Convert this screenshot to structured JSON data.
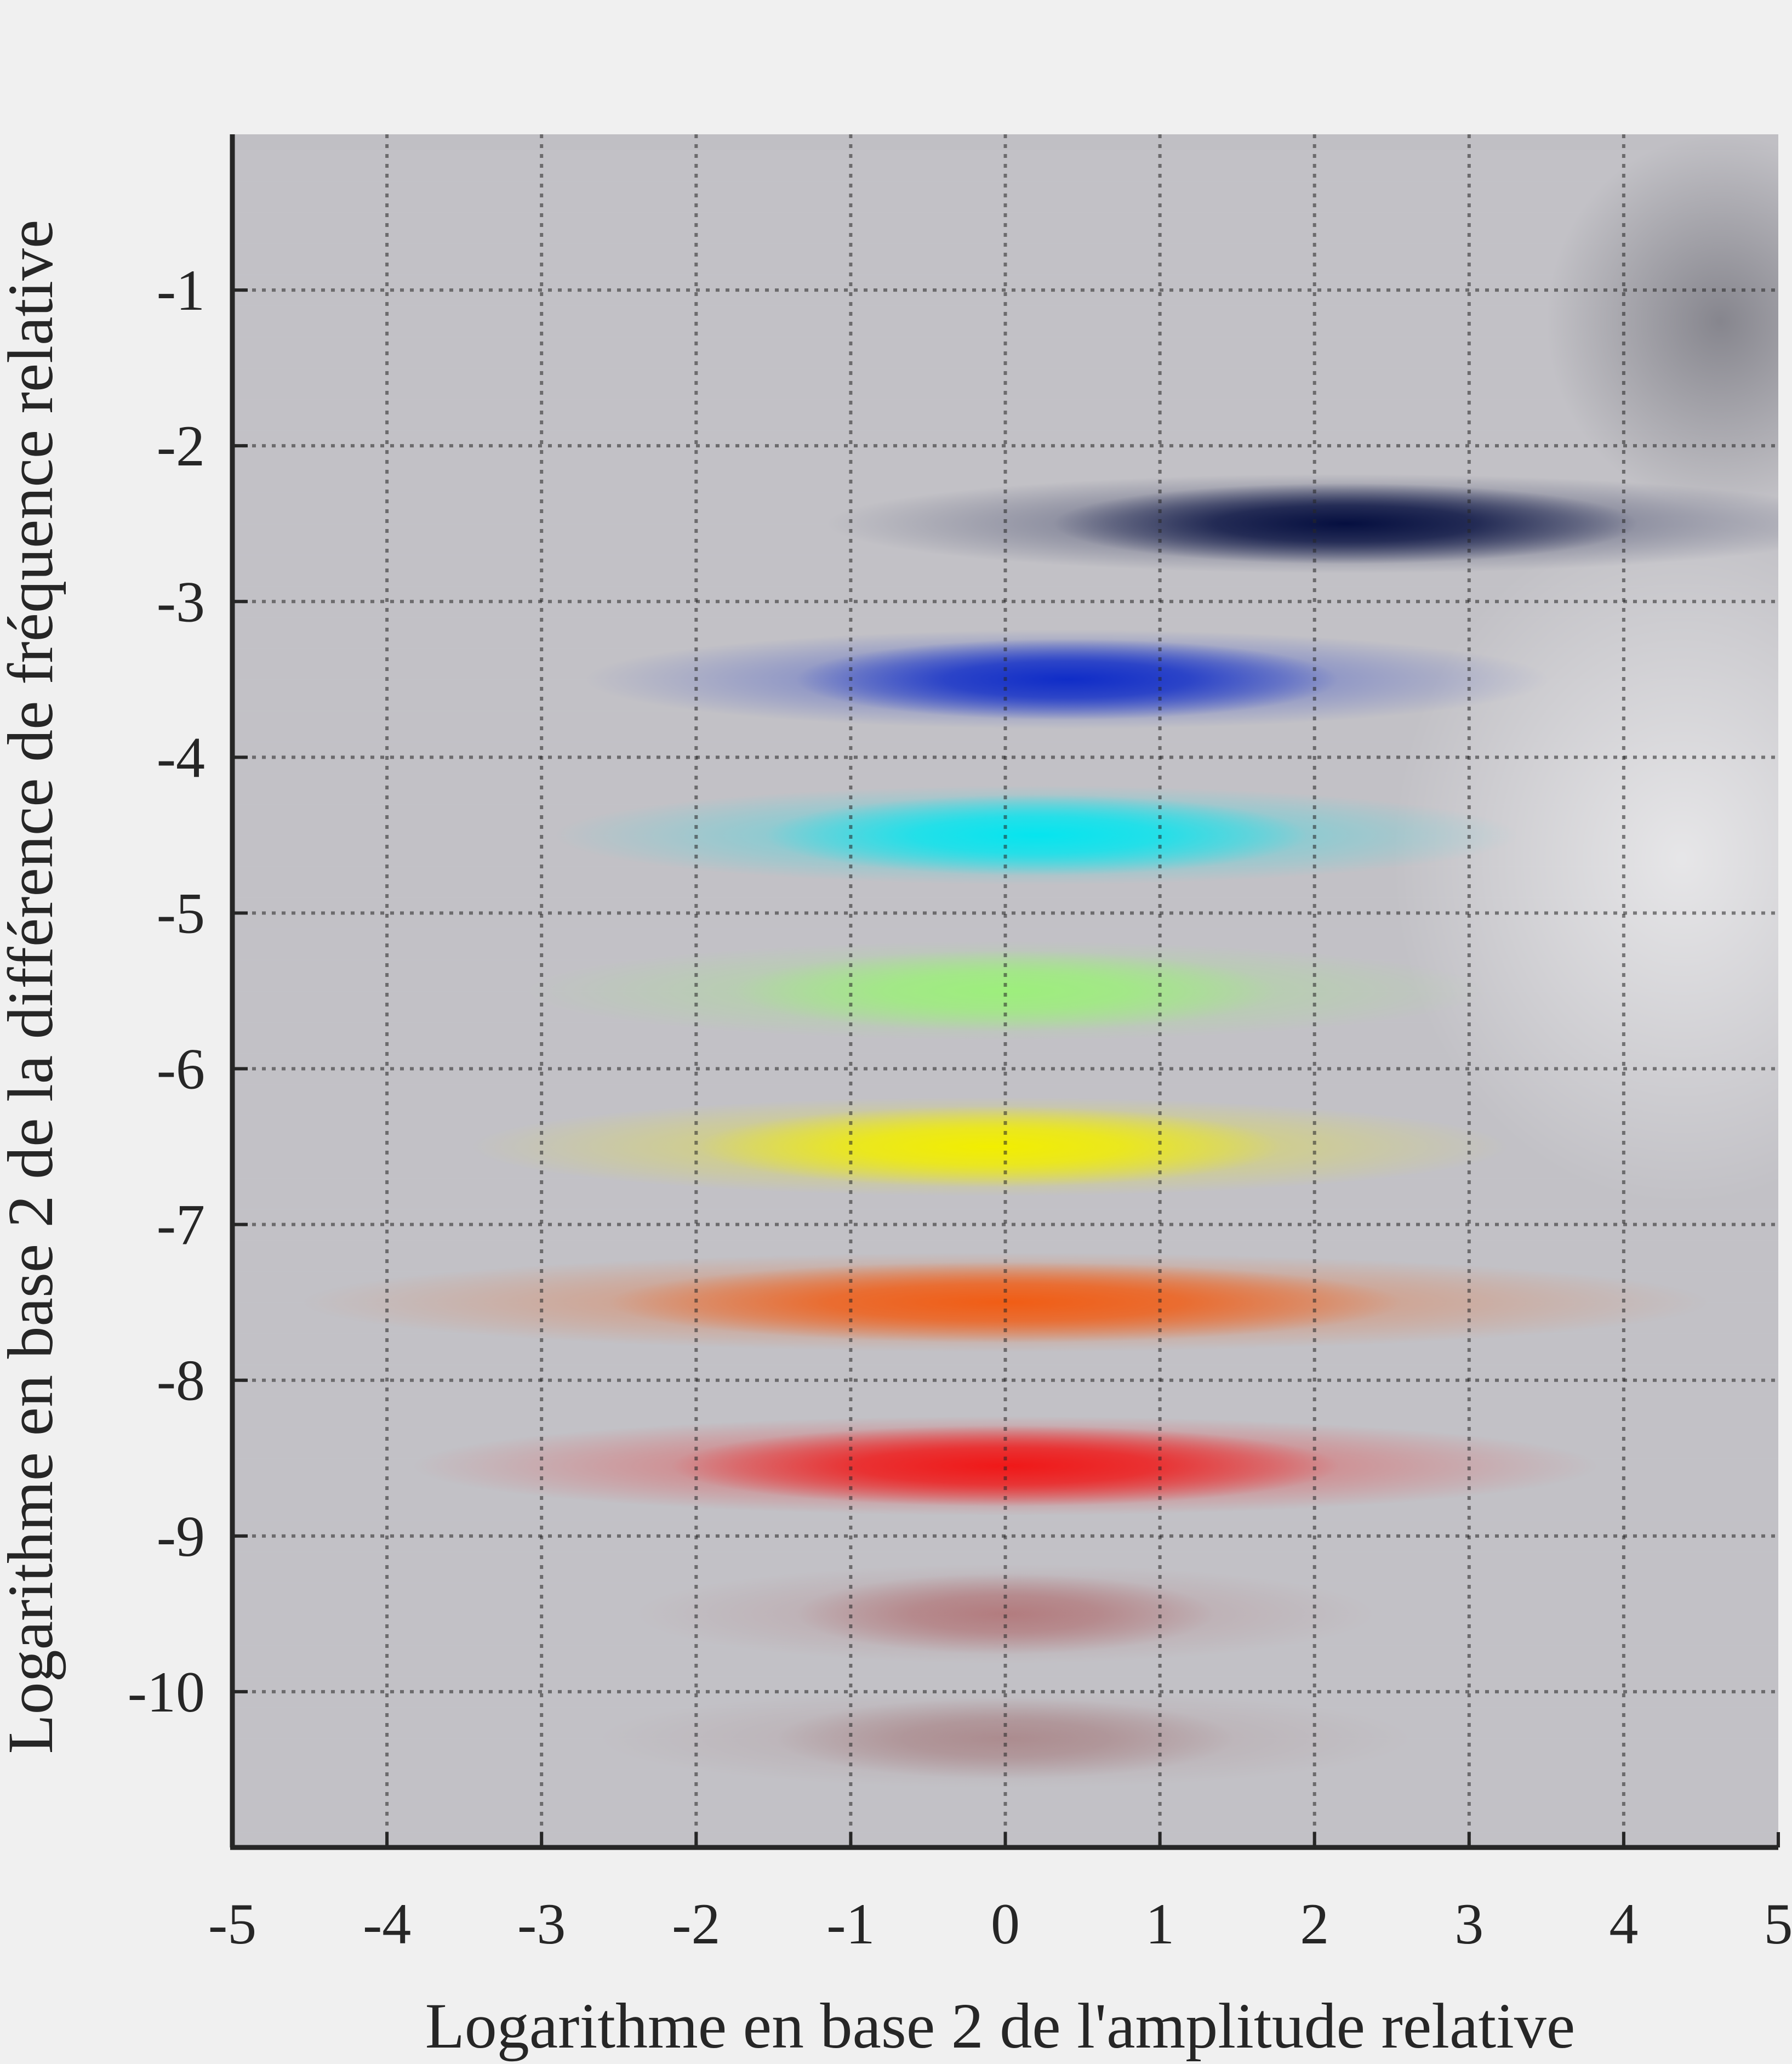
{
  "chart_data": {
    "type": "heatmap",
    "title": "",
    "xlabel": "Logarithme en base 2 de l'amplitude relative",
    "ylabel": "Logarithme en base 2 de la différence de fréquence relative",
    "xlim": [
      -5,
      5
    ],
    "ylim": [
      -11,
      0
    ],
    "x_ticks": [
      -5,
      -4,
      -3,
      -2,
      -1,
      0,
      1,
      2,
      3,
      4,
      5
    ],
    "y_ticks": [
      -1,
      -2,
      -3,
      -4,
      -5,
      -6,
      -7,
      -8,
      -9,
      -10
    ],
    "x_tick_labels": [
      "-5",
      "-4",
      "-3",
      "-2",
      "-1",
      "0",
      "1",
      "2",
      "3",
      "4",
      "5"
    ],
    "y_tick_labels": [
      "-1",
      "-2",
      "-3",
      "-4",
      "-5",
      "-6",
      "-7",
      "-8",
      "-9",
      "-10"
    ],
    "grid": true,
    "grid_style": "dotted",
    "background_color": "#c0bfc4",
    "bands": [
      {
        "y": -2.5,
        "x_center": 2.2,
        "x_spread": 1.4,
        "intensity": 0.95,
        "color": "#000a3c"
      },
      {
        "y": -3.5,
        "x_center": 0.4,
        "x_spread": 1.3,
        "intensity": 0.95,
        "color": "#0a28c8"
      },
      {
        "y": -4.5,
        "x_center": 0.2,
        "x_spread": 1.3,
        "intensity": 0.95,
        "color": "#00e6f0"
      },
      {
        "y": -5.5,
        "x_center": 0.0,
        "x_spread": 1.3,
        "intensity": 0.95,
        "color": "#9cf07a"
      },
      {
        "y": -6.5,
        "x_center": -0.1,
        "x_spread": 1.4,
        "intensity": 1.0,
        "color": "#f2ee00"
      },
      {
        "y": -7.5,
        "x_center": 0.0,
        "x_spread": 1.9,
        "intensity": 0.95,
        "color": "#f25a10"
      },
      {
        "y": -8.55,
        "x_center": 0.0,
        "x_spread": 1.6,
        "intensity": 1.0,
        "color": "#f01818"
      },
      {
        "y": -9.5,
        "x_center": 0.0,
        "x_spread": 1.0,
        "intensity": 0.35,
        "color": "#a02828"
      },
      {
        "y": -10.3,
        "x_center": 0.0,
        "x_spread": 1.1,
        "intensity": 0.3,
        "color": "#8a3a3a"
      }
    ],
    "regions": [
      {
        "description_color": "#4a4a55",
        "x_range": [
          3.5,
          5
        ],
        "y_range": [
          -2.2,
          -0.2
        ],
        "intensity": 0.5
      },
      {
        "description_color": "#ffffff",
        "x_range": [
          2.5,
          5
        ],
        "y_range": [
          -6.5,
          -2.8
        ],
        "intensity": 0.6
      }
    ]
  }
}
